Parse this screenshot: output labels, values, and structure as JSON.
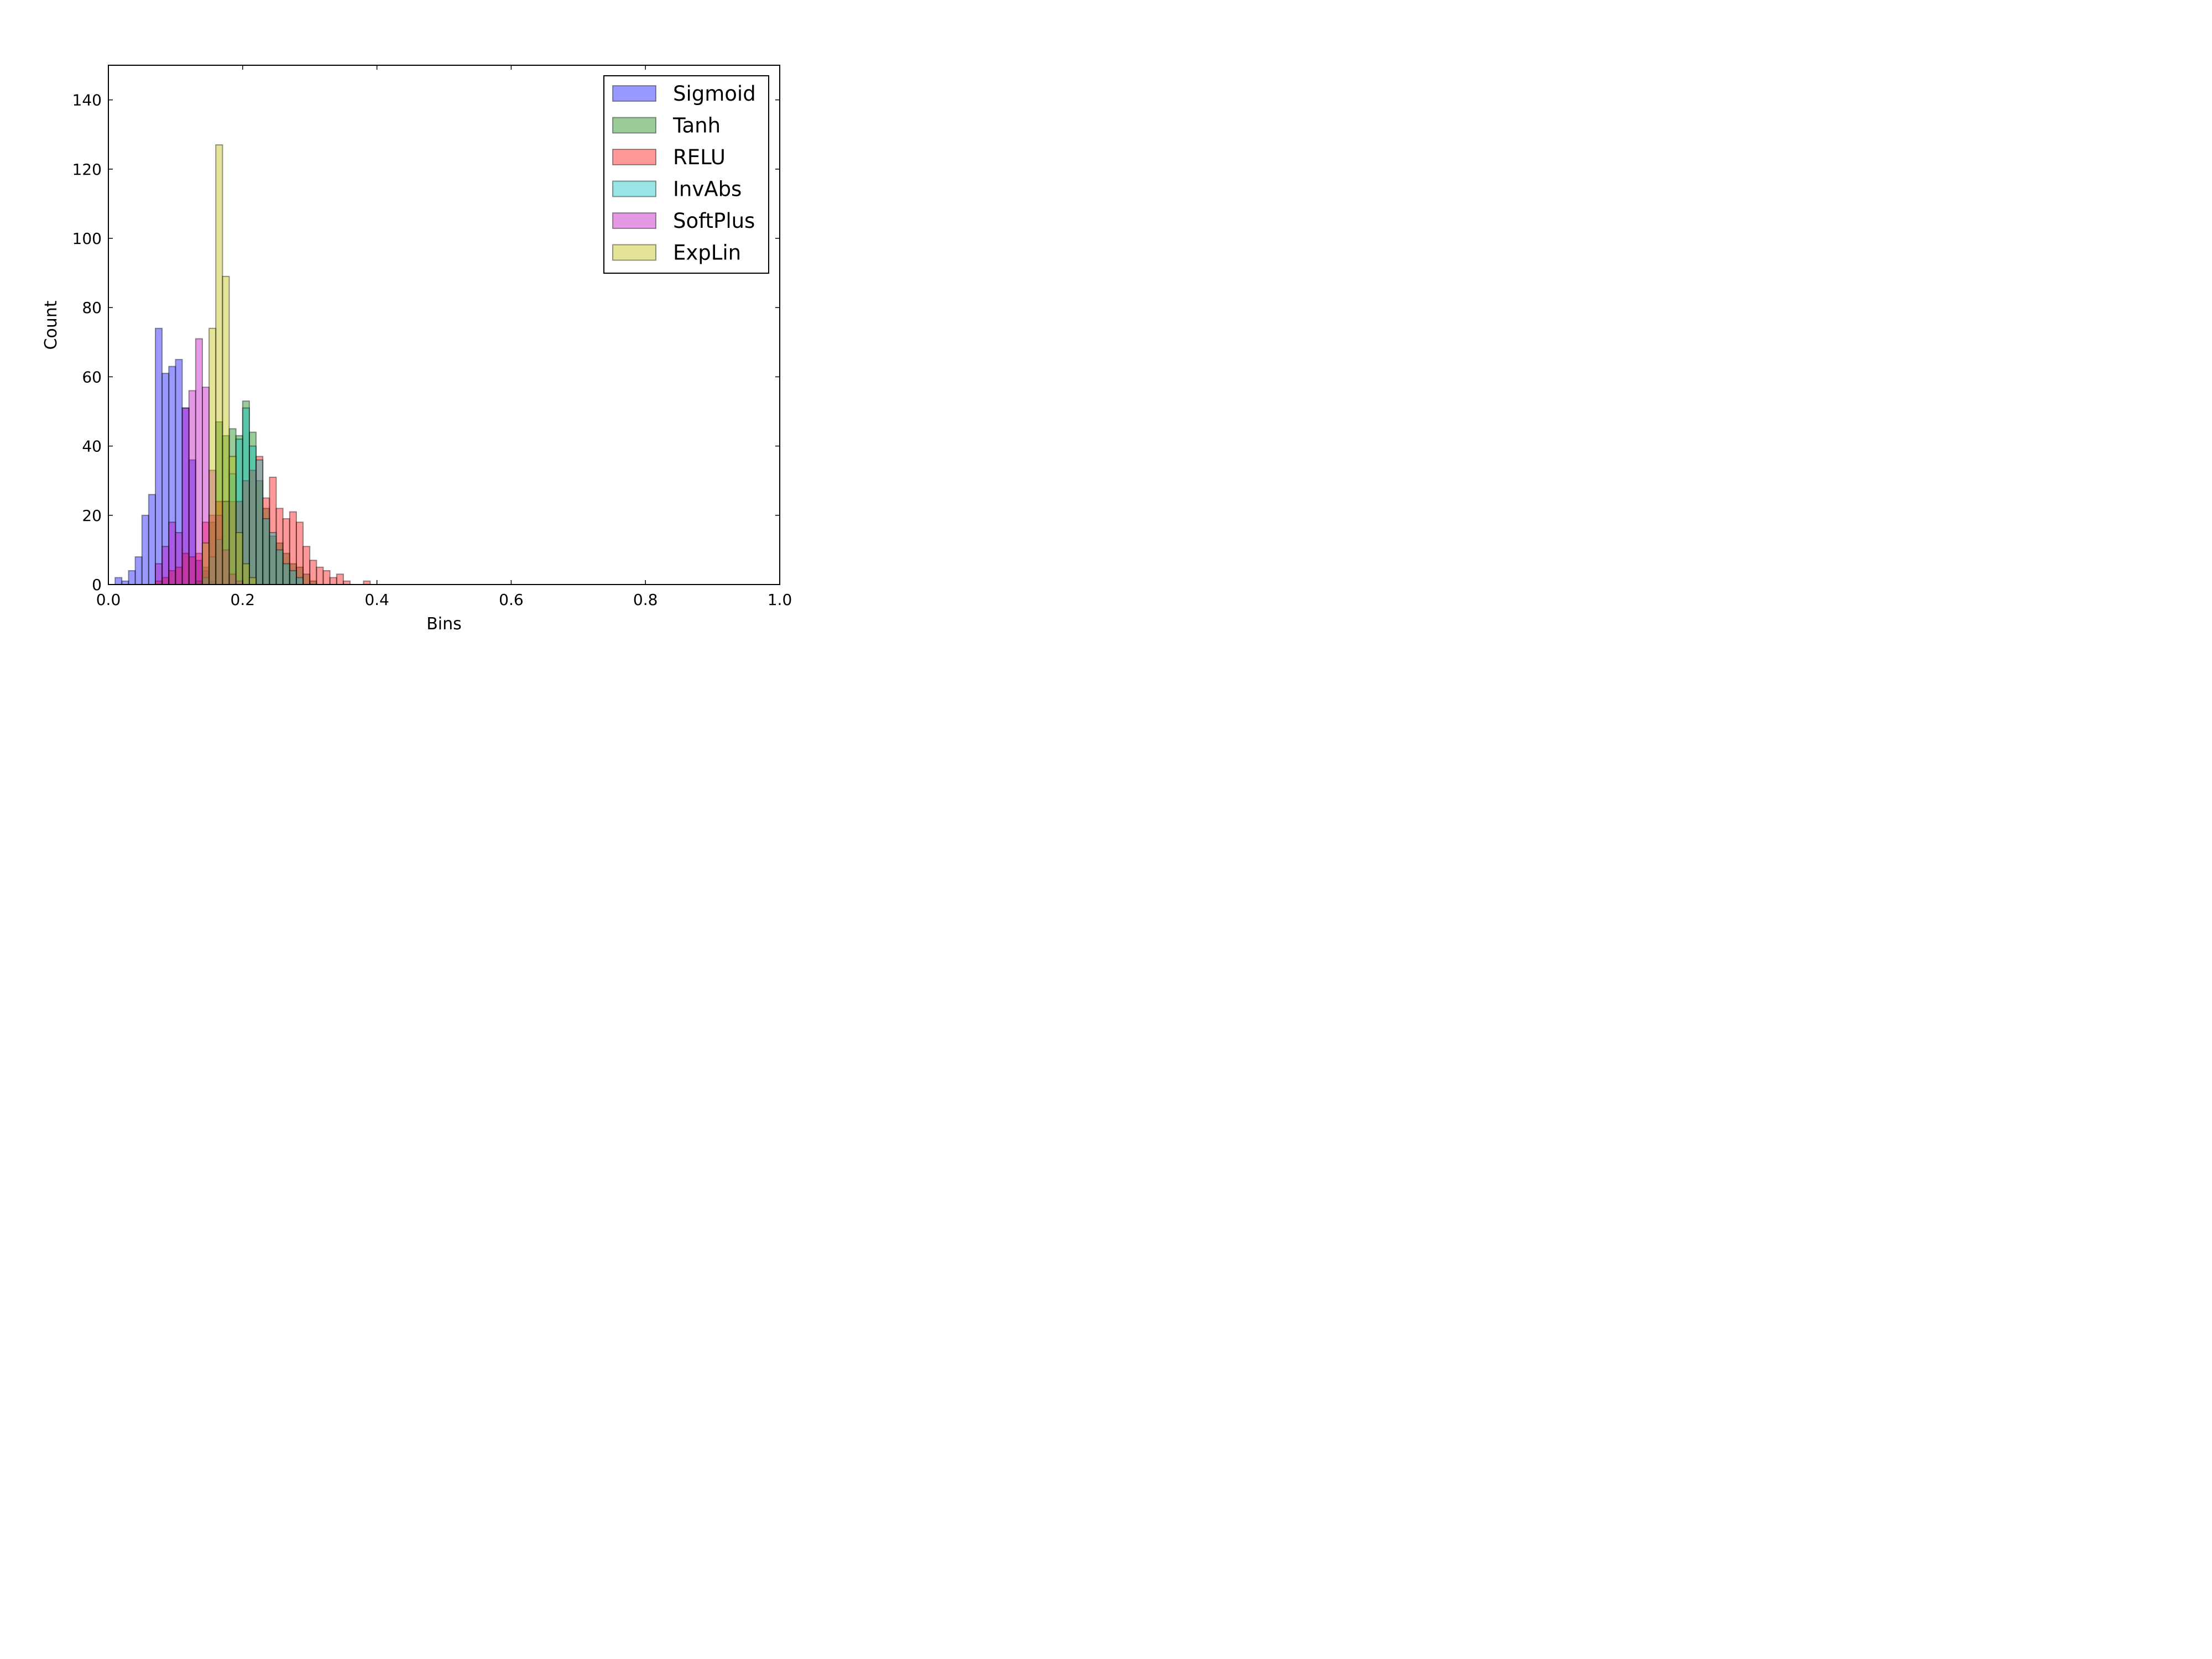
{
  "chart_data": {
    "type": "bar",
    "title": "",
    "xlabel": "Bins",
    "ylabel": "Count",
    "xlim": [
      0.0,
      1.0
    ],
    "ylim": [
      0,
      150
    ],
    "x_ticks": [
      {
        "value": 0.0,
        "label": "0.0"
      },
      {
        "value": 0.2,
        "label": "0.2"
      },
      {
        "value": 0.4,
        "label": "0.4"
      },
      {
        "value": 0.6,
        "label": "0.6"
      },
      {
        "value": 0.8,
        "label": "0.8"
      },
      {
        "value": 1.0,
        "label": "1.0"
      }
    ],
    "y_ticks": [
      {
        "value": 0,
        "label": "0"
      },
      {
        "value": 20,
        "label": "20"
      },
      {
        "value": 40,
        "label": "40"
      },
      {
        "value": 60,
        "label": "60"
      },
      {
        "value": 80,
        "label": "80"
      },
      {
        "value": 100,
        "label": "100"
      },
      {
        "value": 120,
        "label": "120"
      },
      {
        "value": 140,
        "label": "140"
      }
    ],
    "grid": false,
    "legend_position": "top-right",
    "bin_width": 0.01,
    "series": [
      {
        "name": "Sigmoid",
        "color": "#0000ff",
        "bins": [
          [
            0.01,
            2
          ],
          [
            0.02,
            1
          ],
          [
            0.03,
            4
          ],
          [
            0.04,
            8
          ],
          [
            0.05,
            20
          ],
          [
            0.06,
            26
          ],
          [
            0.07,
            74
          ],
          [
            0.08,
            61
          ],
          [
            0.09,
            63
          ],
          [
            0.1,
            65
          ],
          [
            0.11,
            51
          ],
          [
            0.12,
            36
          ],
          [
            0.13,
            7
          ],
          [
            0.14,
            4
          ],
          [
            0.15,
            1
          ]
        ]
      },
      {
        "name": "Tanh",
        "color": "#008000",
        "bins": [
          [
            0.13,
            1
          ],
          [
            0.14,
            5
          ],
          [
            0.15,
            18
          ],
          [
            0.16,
            47
          ],
          [
            0.17,
            43
          ],
          [
            0.18,
            45
          ],
          [
            0.19,
            43
          ],
          [
            0.2,
            53
          ],
          [
            0.21,
            44
          ],
          [
            0.22,
            30
          ],
          [
            0.23,
            22
          ],
          [
            0.24,
            14
          ],
          [
            0.25,
            12
          ],
          [
            0.26,
            9
          ],
          [
            0.27,
            6
          ],
          [
            0.28,
            5
          ],
          [
            0.29,
            3
          ],
          [
            0.3,
            1
          ]
        ]
      },
      {
        "name": "RELU",
        "color": "#ff0000",
        "bins": [
          [
            0.07,
            1
          ],
          [
            0.08,
            2
          ],
          [
            0.09,
            4
          ],
          [
            0.1,
            5
          ],
          [
            0.11,
            9
          ],
          [
            0.12,
            8
          ],
          [
            0.13,
            9
          ],
          [
            0.14,
            18
          ],
          [
            0.15,
            20
          ],
          [
            0.16,
            24
          ],
          [
            0.17,
            24
          ],
          [
            0.18,
            24
          ],
          [
            0.19,
            24
          ],
          [
            0.2,
            30
          ],
          [
            0.21,
            33
          ],
          [
            0.22,
            37
          ],
          [
            0.23,
            25
          ],
          [
            0.24,
            31
          ],
          [
            0.25,
            22
          ],
          [
            0.26,
            19
          ],
          [
            0.27,
            21
          ],
          [
            0.28,
            18
          ],
          [
            0.29,
            11
          ],
          [
            0.3,
            7
          ],
          [
            0.31,
            5
          ],
          [
            0.32,
            4
          ],
          [
            0.33,
            2
          ],
          [
            0.34,
            3
          ],
          [
            0.35,
            1
          ],
          [
            0.38,
            1
          ]
        ]
      },
      {
        "name": "InvAbs",
        "color": "#00bfbf",
        "bins": [
          [
            0.14,
            2
          ],
          [
            0.15,
            8
          ],
          [
            0.16,
            13
          ],
          [
            0.17,
            24
          ],
          [
            0.18,
            32
          ],
          [
            0.19,
            42
          ],
          [
            0.2,
            51
          ],
          [
            0.21,
            40
          ],
          [
            0.22,
            36
          ],
          [
            0.23,
            19
          ],
          [
            0.24,
            15
          ],
          [
            0.25,
            10
          ],
          [
            0.26,
            6
          ],
          [
            0.27,
            4
          ],
          [
            0.28,
            2
          ]
        ]
      },
      {
        "name": "SoftPlus",
        "color": "#bf00bf",
        "bins": [
          [
            0.07,
            6
          ],
          [
            0.08,
            11
          ],
          [
            0.09,
            18
          ],
          [
            0.1,
            15
          ],
          [
            0.11,
            51
          ],
          [
            0.12,
            56
          ],
          [
            0.13,
            71
          ],
          [
            0.14,
            57
          ],
          [
            0.15,
            33
          ],
          [
            0.16,
            20
          ],
          [
            0.17,
            10
          ],
          [
            0.18,
            3
          ],
          [
            0.19,
            1
          ]
        ]
      },
      {
        "name": "ExpLin",
        "color": "#bfbf00",
        "bins": [
          [
            0.14,
            12
          ],
          [
            0.15,
            74
          ],
          [
            0.16,
            127
          ],
          [
            0.17,
            89
          ],
          [
            0.18,
            37
          ],
          [
            0.19,
            15
          ],
          [
            0.2,
            6
          ],
          [
            0.21,
            2
          ]
        ]
      }
    ]
  }
}
